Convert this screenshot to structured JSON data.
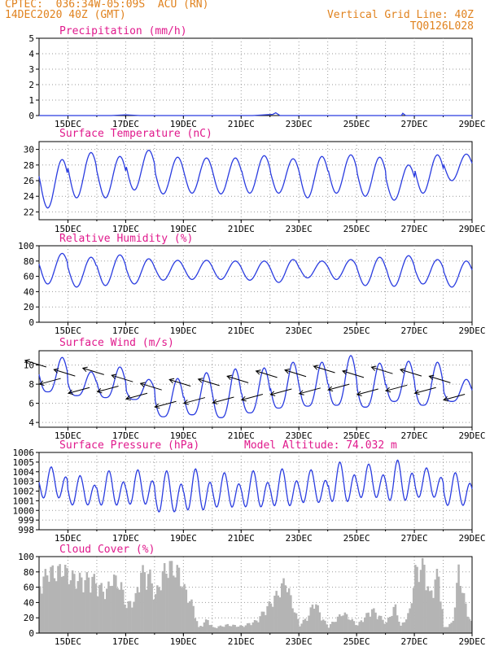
{
  "header": {
    "line1": "CPTEC:  036:34W-05:09S  ACU (RN)",
    "line2": "14DEC2020 40Z (GMT)",
    "right1": "Vertical Grid Line: 40Z",
    "right2": "TQ0126L028"
  },
  "colors": {
    "header": "#e0821e",
    "title": "#e0198c",
    "line": "#2a3ce0",
    "arrow": "#000000",
    "bar": "#b4b4b4",
    "grid": "#9a9a9a"
  },
  "x_axis": {
    "start_day": 14.0,
    "end_day": 29.0,
    "tick_days": [
      15,
      17,
      19,
      21,
      23,
      25,
      27,
      29
    ],
    "tick_labels": [
      "15DEC",
      "17DEC",
      "19DEC",
      "21DEC",
      "23DEC",
      "25DEC",
      "27DEC",
      "29DEC"
    ]
  },
  "chart_data": [
    {
      "id": "precip",
      "type": "line",
      "title": "Precipitation (mm/h)",
      "ylim": [
        0,
        5
      ],
      "yticks": [
        0,
        1,
        2,
        3,
        4,
        5
      ],
      "x": [
        14.0,
        16.5,
        17.0,
        17.5,
        21.4,
        22.1,
        22.2,
        22.35,
        26.55,
        26.6,
        26.7,
        29.0
      ],
      "y": [
        0.0,
        0.0,
        0.05,
        0.0,
        0.0,
        0.08,
        0.18,
        0.0,
        0.0,
        0.15,
        0.0,
        0.0
      ]
    },
    {
      "id": "temp",
      "type": "line",
      "title": "Surface Temperature (nC)",
      "ylim": [
        21,
        31
      ],
      "yticks": [
        22,
        24,
        26,
        28,
        30
      ],
      "diurnal_max": [
        28.7,
        29.6,
        29.1,
        29.9,
        29.0,
        28.9,
        28.9,
        29.2,
        28.8,
        29.1,
        29.3,
        29.0,
        28.0,
        29.3,
        29.4
      ],
      "diurnal_min": [
        22.5,
        23.8,
        23.8,
        24.8,
        24.3,
        24.4,
        24.3,
        24.4,
        24.4,
        23.8,
        24.4,
        24.0,
        23.5,
        24.4,
        26.0
      ]
    },
    {
      "id": "rh",
      "type": "line",
      "title": "Relative Humidity (%)",
      "ylim": [
        0,
        100
      ],
      "yticks": [
        0,
        20,
        40,
        60,
        80,
        100
      ],
      "diurnal_max": [
        90,
        85,
        88,
        83,
        81,
        81,
        80,
        80,
        82,
        80,
        82,
        85,
        87,
        82,
        80
      ],
      "diurnal_min": [
        50,
        46,
        48,
        50,
        55,
        56,
        56,
        55,
        52,
        58,
        56,
        48,
        47,
        50,
        46
      ]
    },
    {
      "id": "wind",
      "type": "line",
      "title": "Surface Wind (m/s)",
      "ylim": [
        3.5,
        11.5
      ],
      "yticks": [
        4,
        6,
        8,
        10
      ],
      "daily_max": [
        10.8,
        9.3,
        9.8,
        8.5,
        8.6,
        9.2,
        9.6,
        9.7,
        10.3,
        10.3,
        11.0,
        10.2,
        10.4,
        10.3,
        8.5
      ],
      "daily_min": [
        7.2,
        6.8,
        6.6,
        6.4,
        4.6,
        4.8,
        4.5,
        5.0,
        5.5,
        5.7,
        5.8,
        5.6,
        6.2,
        5.8,
        6.2
      ]
    },
    {
      "id": "pressure",
      "type": "line",
      "title": "Surface Pressure (hPa)",
      "annotation": "Model Altitude: 74.032 m",
      "ylim": [
        998,
        1006
      ],
      "yticks": [
        998,
        999,
        1000,
        1001,
        1002,
        1003,
        1004,
        1005,
        1006
      ],
      "daily_max": [
        1004.5,
        1003.6,
        1004.1,
        1004.2,
        1004.1,
        1004.3,
        1003.9,
        1004.1,
        1004.3,
        1004.2,
        1005.0,
        1004.8,
        1005.2,
        1004.4,
        1003.9
      ],
      "daily_min": [
        1000.8,
        1000.1,
        1000.0,
        1000.1,
        999.2,
        999.4,
        999.8,
        999.8,
        999.9,
        1000.3,
        1000.3,
        1000.8,
        1000.4,
        1000.9,
        1000.0
      ]
    },
    {
      "id": "cloud",
      "type": "bar",
      "title": "Cloud Cover (%)",
      "ylim": [
        0,
        100
      ],
      "yticks": [
        0,
        20,
        40,
        60,
        80,
        100
      ],
      "envelope_x": [
        14.0,
        14.3,
        14.5,
        14.8,
        15.0,
        15.3,
        15.5,
        15.8,
        16.0,
        16.3,
        16.5,
        16.8,
        17.0,
        17.3,
        17.5,
        17.8,
        18.0,
        18.3,
        18.5,
        18.8,
        19.0,
        19.3,
        19.5,
        19.8,
        20.0,
        20.5,
        21.0,
        21.5,
        22.0,
        22.3,
        22.5,
        22.8,
        23.0,
        23.3,
        23.5,
        23.8,
        24.0,
        24.5,
        25.0,
        25.5,
        26.0,
        26.3,
        26.5,
        26.8,
        27.0,
        27.3,
        27.5,
        27.8,
        28.0,
        28.3,
        28.5,
        28.8,
        29.0
      ],
      "envelope_y": [
        70,
        93,
        88,
        95,
        85,
        80,
        78,
        82,
        70,
        60,
        82,
        70,
        40,
        50,
        90,
        85,
        55,
        92,
        98,
        90,
        65,
        40,
        8,
        20,
        8,
        12,
        10,
        18,
        45,
        62,
        78,
        35,
        12,
        25,
        48,
        20,
        10,
        30,
        12,
        35,
        15,
        40,
        10,
        30,
        90,
        100,
        55,
        90,
        8,
        15,
        92,
        30,
        10
      ]
    }
  ]
}
